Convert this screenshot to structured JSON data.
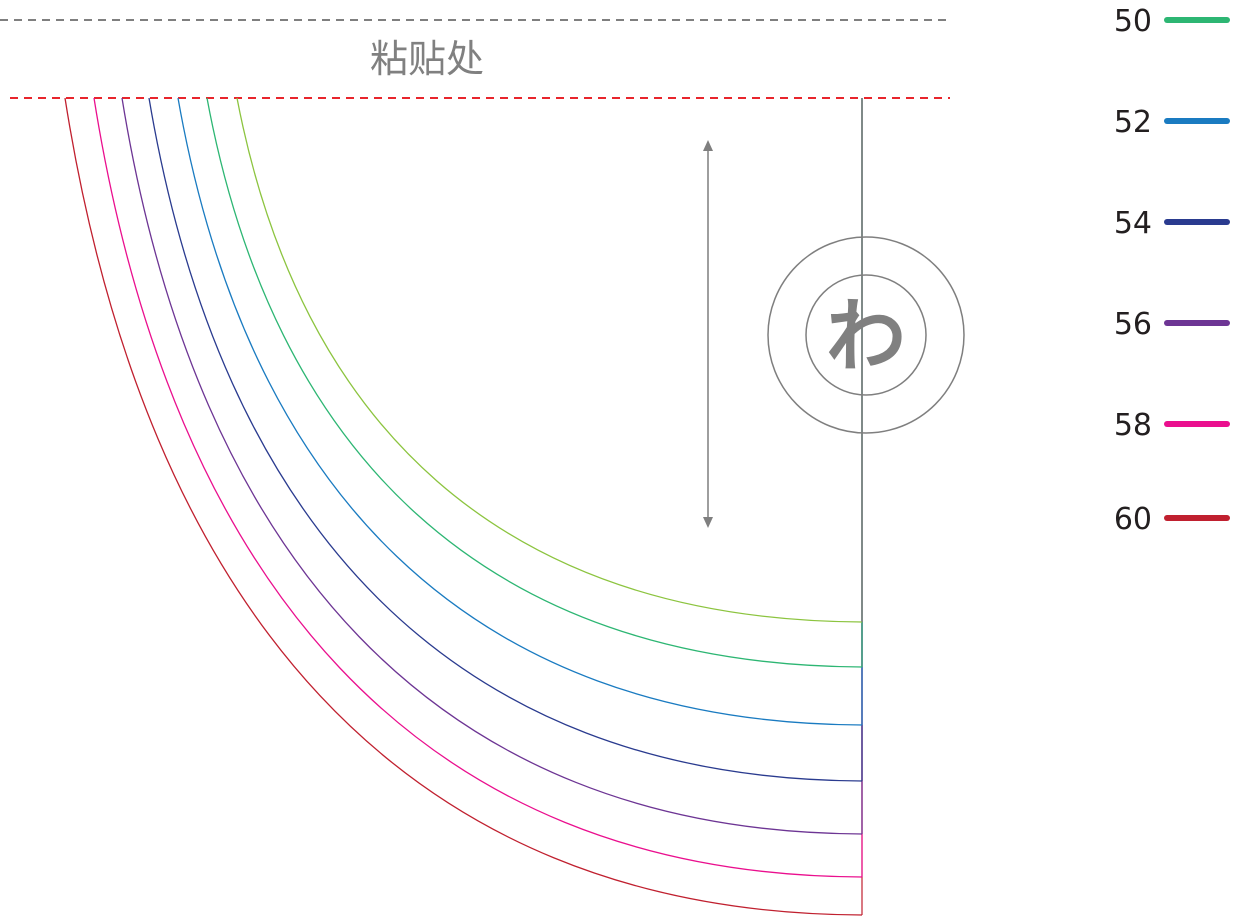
{
  "glue_area": {
    "label": "粘贴处",
    "top_line_color": "#7f7f7f",
    "glue_line_color": "#e8252c"
  },
  "fold_mark": {
    "label": "わ",
    "icon": "double-circle-fold-icon",
    "color": "#7f7f7f"
  },
  "grain_arrow": {
    "icon": "double-arrow-grainline-icon",
    "color": "#7f7f7f"
  },
  "fold_line_color": "#7f7f7f",
  "sizes": [
    {
      "label": "50",
      "color": "#2db673"
    },
    {
      "label": "52",
      "color": "#1a7bc1"
    },
    {
      "label": "54",
      "color": "#2a3b8f"
    },
    {
      "label": "56",
      "color": "#6d3594"
    },
    {
      "label": "58",
      "color": "#ea0f8e"
    },
    {
      "label": "60",
      "color": "#c0202f"
    }
  ],
  "innermost_curve_color": "#8cc43f"
}
